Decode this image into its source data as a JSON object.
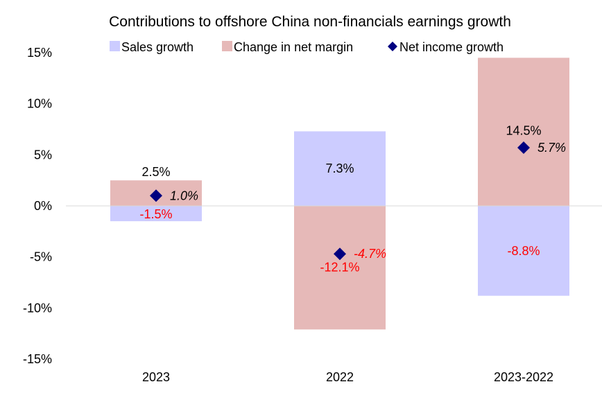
{
  "chart_data": {
    "type": "bar",
    "stacked": true,
    "title": "Contributions to offshore China non-financials earnings growth",
    "categories": [
      "2023",
      "2022",
      "2023-2022"
    ],
    "series": [
      {
        "name": "Sales growth",
        "values": [
          -1.5,
          7.3,
          -8.8
        ],
        "labels": [
          "-1.5%",
          "7.3%",
          "-8.8%"
        ],
        "color": "#ccccff"
      },
      {
        "name": "Change in net margin",
        "values": [
          2.5,
          -12.1,
          14.5
        ],
        "labels": [
          "2.5%",
          "-12.1%",
          "14.5%"
        ],
        "color": "#e6b9b8"
      }
    ],
    "markers": {
      "name": "Net income growth",
      "values": [
        1.0,
        -4.7,
        5.7
      ],
      "labels": [
        "1.0%",
        "-4.7%",
        "5.7%"
      ],
      "color": "#000080"
    },
    "ylim": [
      -15,
      15
    ],
    "yticks": [
      15,
      10,
      5,
      0,
      -5,
      -10,
      -15
    ],
    "ytick_labels": [
      "15%",
      "10%",
      "5%",
      "0%",
      "-5%",
      "-10%",
      "-15%"
    ],
    "negative_label_color": "#ff0000",
    "positive_label_color": "#000000",
    "legend_position": "top-center",
    "grid": false
  }
}
